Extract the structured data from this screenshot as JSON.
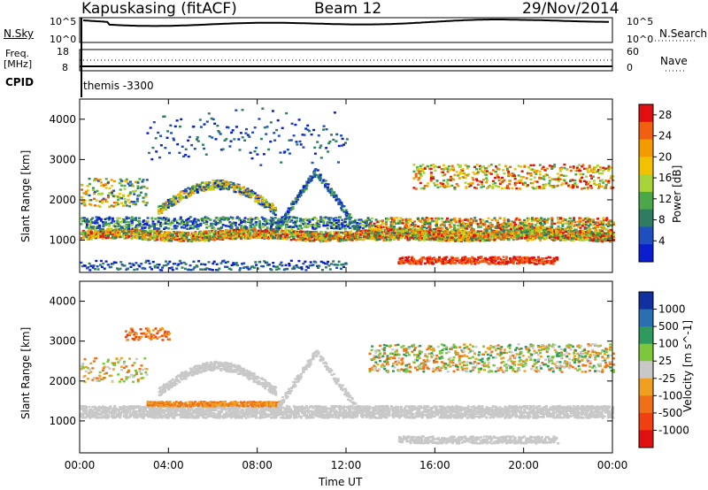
{
  "header": {
    "station": "Kapuskasing (fitACF)",
    "beam": "Beam 12",
    "date": "29/Nov/2014"
  },
  "panels": {
    "nsky": {
      "label": "N.Sky",
      "left_ticks": [
        "10^5",
        "10^0"
      ],
      "right_ticks": [
        "10^5",
        "10^0"
      ],
      "right_label": "N.Search"
    },
    "freq": {
      "label_top": "Freq.",
      "label_bottom": "[MHz]",
      "left_ticks": [
        "18",
        "8"
      ],
      "right_ticks": [
        "60",
        "0"
      ],
      "right_label": "Nave"
    },
    "cpid": {
      "label": "CPID",
      "value": "themis -3300"
    }
  },
  "colors": {
    "power": [
      "#0a1ecf",
      "#1f4fbf",
      "#2e7d63",
      "#4aa84a",
      "#a8d43a",
      "#f2c200",
      "#f39a00",
      "#f06010",
      "#e01010"
    ],
    "velocity": [
      "#1030a0",
      "#2a6fb0",
      "#2f9a5e",
      "#7cc83a",
      "#c8c8c8",
      "#f0a020",
      "#f07018",
      "#f04010",
      "#e01010"
    ]
  },
  "chart_data": [
    {
      "type": "heatmap",
      "title": "",
      "xlabel": "Time UT",
      "ylabel": "Slant Range [km]",
      "x_ticks": [
        "00:00",
        "04:00",
        "08:00",
        "12:00",
        "16:00",
        "20:00",
        "00:00"
      ],
      "xlim": [
        0,
        24
      ],
      "ylim": [
        200,
        4500
      ],
      "y_ticks": [
        1000,
        2000,
        3000,
        4000
      ],
      "colorbar": {
        "label": "Power [dB]",
        "ticks": [
          4,
          8,
          12,
          16,
          20,
          24,
          28
        ],
        "range": [
          0,
          30
        ]
      },
      "features": [
        {
          "name": "near band",
          "time_start": 0.0,
          "time_end": 24.0,
          "range_km": 1150,
          "value_db": 22
        },
        {
          "name": "arc",
          "time_start": 3.5,
          "time_end": 8.8,
          "range_km_min": 1700,
          "range_km_max": 2450,
          "value_db": 16
        },
        {
          "name": "inverted V",
          "time_start": 8.8,
          "time_end": 12.5,
          "range_km_min": 1300,
          "range_km_max": 2800,
          "value_db": 10
        },
        {
          "name": "low echoes",
          "time_start": 14.0,
          "time_end": 21.5,
          "range_km": 500,
          "value_db": 28
        }
      ]
    },
    {
      "type": "heatmap",
      "title": "",
      "xlabel": "Time UT",
      "ylabel": "Slant Range [km]",
      "x_ticks": [
        "00:00",
        "04:00",
        "08:00",
        "12:00",
        "16:00",
        "20:00",
        "00:00"
      ],
      "xlim": [
        0,
        24
      ],
      "ylim": [
        200,
        4500
      ],
      "y_ticks": [
        1000,
        2000,
        3000,
        4000
      ],
      "colorbar": {
        "label": "Velocity [m s^-1]",
        "ticks": [
          1000,
          500,
          100,
          25,
          -25,
          -100,
          -500,
          -1000
        ]
      },
      "features": [
        {
          "name": "ground scatter band",
          "time_start": 0.0,
          "time_end": 24.0,
          "range_km": 1250,
          "value_ms": 0
        },
        {
          "name": "arc",
          "time_start": 3.5,
          "time_end": 8.8,
          "range_km_min": 1700,
          "range_km_max": 2450,
          "value_ms": 0
        },
        {
          "name": "afternoon patch",
          "time_start": 16.5,
          "time_end": 23.5,
          "range_km": 2600,
          "value_ms": -150
        }
      ]
    }
  ]
}
